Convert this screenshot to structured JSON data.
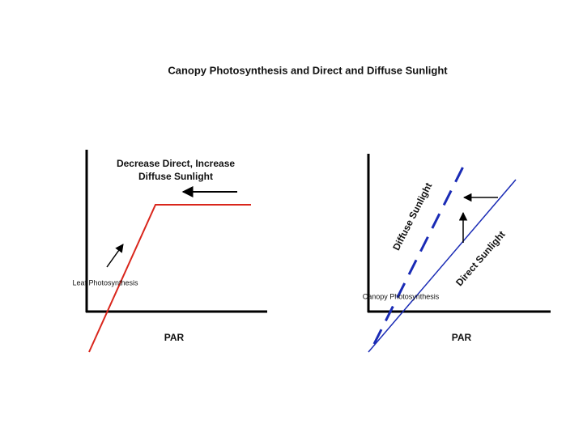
{
  "title": "Canopy Photosynthesis and Direct and Diffuse Sunlight",
  "left_panel": {
    "annotation": [
      "Decrease Direct, Increase",
      "Diffuse Sunlight"
    ],
    "x_label": "PAR",
    "y_label": "Leaf Photosynthesis"
  },
  "right_panel": {
    "x_label": "PAR",
    "y_label": "Canopy Photosynthesis",
    "line_labels": [
      "Diffuse Sunlight",
      "Direct Sunlight"
    ]
  }
}
